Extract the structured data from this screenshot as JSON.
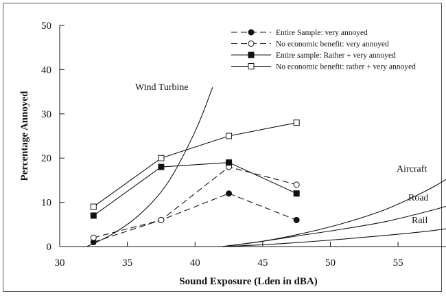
{
  "chart_data": {
    "type": "line",
    "xlabel": "Sound Exposure (Lden in dBA)",
    "ylabel": "Percentage Annoyed",
    "xlim": [
      30,
      59
    ],
    "ylim": [
      0,
      50
    ],
    "xticks": [
      30,
      35,
      40,
      45,
      50,
      55
    ],
    "yticks": [
      0,
      10,
      20,
      30,
      40,
      50
    ],
    "legend_position": "top-right",
    "series": [
      {
        "name": "Entire Sample: very annoyed",
        "style": "dashed",
        "marker": "filled-circle",
        "x": [
          32.5,
          37.5,
          42.5,
          47.5
        ],
        "y": [
          1,
          6,
          12,
          6
        ]
      },
      {
        "name": "No economic benefit: very annoyed",
        "style": "dashed",
        "marker": "open-circle",
        "x": [
          32.5,
          37.5,
          42.5,
          47.5
        ],
        "y": [
          2,
          6,
          18,
          14
        ]
      },
      {
        "name": "Entire sample: Rather + very annoyed",
        "style": "solid",
        "marker": "filled-square",
        "x": [
          32.5,
          37.5,
          42.5,
          47.5
        ],
        "y": [
          7,
          18,
          19,
          12
        ]
      },
      {
        "name": "No economic benefit: rather + very annoyed",
        "style": "solid",
        "marker": "open-square",
        "x": [
          32.5,
          37.5,
          42.5,
          47.5
        ],
        "y": [
          9,
          20,
          25,
          28
        ]
      }
    ],
    "reference_curves": [
      {
        "name": "Wind Turbine",
        "x": [
          32,
          34,
          36,
          38,
          40,
          41.3
        ],
        "y": [
          0,
          3,
          7.5,
          14.5,
          26,
          36
        ]
      },
      {
        "name": "Aircraft",
        "x": [
          42,
          45,
          48,
          51,
          54,
          57,
          59
        ],
        "y": [
          0,
          1.2,
          3,
          5.3,
          8.3,
          12.5,
          16
        ]
      },
      {
        "name": "Road",
        "x": [
          42,
          45,
          48,
          51,
          54,
          57,
          59
        ],
        "y": [
          0,
          1.2,
          2.6,
          4,
          5.6,
          7.8,
          9.5
        ]
      },
      {
        "name": "Rail",
        "x": [
          42,
          45,
          48,
          51,
          54,
          57,
          59
        ],
        "y": [
          0,
          0.4,
          1,
          1.7,
          2.5,
          3.4,
          4.2
        ]
      }
    ]
  }
}
